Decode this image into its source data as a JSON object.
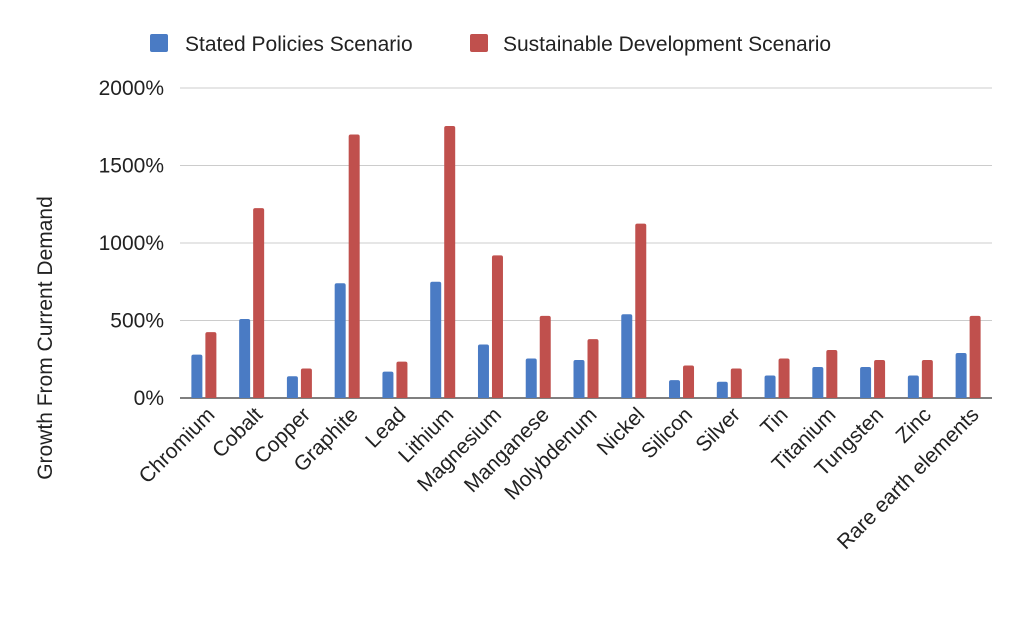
{
  "chart_data": {
    "type": "bar",
    "title": "",
    "xlabel": "",
    "ylabel": "Growth From Current Demand",
    "ylim": [
      0,
      2000
    ],
    "yticks": [
      0,
      500,
      1000,
      1500,
      2000
    ],
    "ytick_labels": [
      "0%",
      "500%",
      "1000%",
      "1500%",
      "2000%"
    ],
    "grid": true,
    "legend_position": "top",
    "categories": [
      "Chromium",
      "Cobalt",
      "Copper",
      "Graphite",
      "Lead",
      "Lithium",
      "Magnesium",
      "Manganese",
      "Molybdenum",
      "Nickel",
      "Silicon",
      "Silver",
      "Tin",
      "Titanium",
      "Tungsten",
      "Zinc",
      "Rare earth elements"
    ],
    "series": [
      {
        "name": "Stated Policies Scenario",
        "color": "#4a7bc4",
        "values": [
          280,
          510,
          140,
          740,
          170,
          750,
          345,
          255,
          245,
          540,
          115,
          105,
          145,
          200,
          200,
          145,
          290
        ]
      },
      {
        "name": "Sustainable Development Scenario",
        "color": "#c0504d",
        "values": [
          425,
          1225,
          190,
          1700,
          235,
          1755,
          920,
          530,
          380,
          1125,
          210,
          190,
          255,
          310,
          245,
          245,
          530
        ]
      }
    ]
  }
}
